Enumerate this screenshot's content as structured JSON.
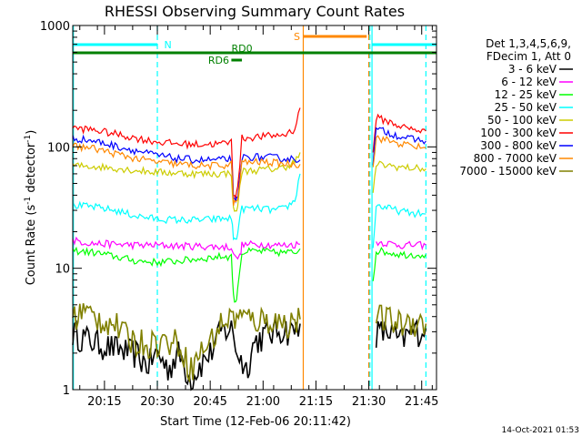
{
  "chart_data": {
    "type": "line",
    "title": "RHESSI Observing Summary Count Rates",
    "xlabel": "Start Time (12-Feb-06 20:11:42)",
    "ylabel": "Count Rate (s⁻¹ detector⁻¹)",
    "ylabel_main": "Count Rate (s",
    "ylabel_sup1": "-1",
    "ylabel_mid": " detector",
    "ylabel_sup2": "-1",
    "ylabel_end": ")",
    "yscale": "log",
    "ylim": [
      1,
      1000
    ],
    "xlim": [
      20.1,
      21.82
    ],
    "x_unit": "hours (UT)",
    "x_ticks": [
      {
        "t": 20.25,
        "label": "20:15"
      },
      {
        "t": 20.5,
        "label": "20:30"
      },
      {
        "t": 20.75,
        "label": "20:45"
      },
      {
        "t": 21.0,
        "label": "21:00"
      },
      {
        "t": 21.25,
        "label": "21:15"
      },
      {
        "t": 21.5,
        "label": "21:30"
      },
      {
        "t": 21.75,
        "label": "21:45"
      }
    ],
    "y_ticks": [
      {
        "v": 1,
        "label": "1"
      },
      {
        "v": 10,
        "label": "10"
      },
      {
        "v": 100,
        "label": "100"
      },
      {
        "v": 1000,
        "label": "1000"
      }
    ],
    "legend_header": [
      "Det 1,3,4,5,6,9,",
      "FDecim 1, Att 0"
    ],
    "legend_placement": "right",
    "series": [
      {
        "name": "3 - 6 keV",
        "color": "#000000",
        "points": [
          [
            20.1,
            3.0
          ],
          [
            20.2,
            2.5
          ],
          [
            20.3,
            2.2
          ],
          [
            20.4,
            2.0
          ],
          [
            20.45,
            1.6
          ],
          [
            20.5,
            2.0
          ],
          [
            20.55,
            1.5
          ],
          [
            20.6,
            2.0
          ],
          [
            20.66,
            1.2
          ],
          [
            20.7,
            1.6
          ],
          [
            20.75,
            2.0
          ],
          [
            20.8,
            3.0
          ],
          [
            20.85,
            3.2
          ],
          [
            20.88,
            2.0
          ],
          [
            20.92,
            1.5
          ],
          [
            20.96,
            2.5
          ],
          [
            21.0,
            2.8
          ],
          [
            21.05,
            3.0
          ],
          [
            21.1,
            3.2
          ],
          [
            21.14,
            3.0
          ],
          [
            21.175,
            3.5
          ]
        ]
      },
      {
        "name": "3 - 6 keV",
        "color": "#000000",
        "points": [
          [
            21.535,
            3.0
          ],
          [
            21.6,
            3.0
          ],
          [
            21.65,
            2.5
          ],
          [
            21.7,
            3.0
          ],
          [
            21.77,
            3.2
          ]
        ]
      },
      {
        "name": "6 - 12 keV",
        "color": "#ff00ff",
        "points": [
          [
            20.1,
            17
          ],
          [
            20.2,
            16
          ],
          [
            20.3,
            15.8
          ],
          [
            20.4,
            15.5
          ],
          [
            20.5,
            15.5
          ],
          [
            20.6,
            15.3
          ],
          [
            20.7,
            15.2
          ],
          [
            20.8,
            15.0
          ],
          [
            20.85,
            15.0
          ],
          [
            20.87,
            12.0
          ],
          [
            20.89,
            12.5
          ],
          [
            20.9,
            15.5
          ],
          [
            20.95,
            15.8
          ],
          [
            21.0,
            15.8
          ],
          [
            21.05,
            15.5
          ],
          [
            21.1,
            15.5
          ],
          [
            21.175,
            15.8
          ]
        ]
      },
      {
        "name": "6 - 12 keV",
        "color": "#ff00ff",
        "points": [
          [
            21.535,
            16.5
          ],
          [
            21.6,
            16
          ],
          [
            21.65,
            15.5
          ],
          [
            21.7,
            15.5
          ],
          [
            21.77,
            15.5
          ]
        ]
      },
      {
        "name": "12 - 25 keV",
        "color": "#00ff00",
        "points": [
          [
            20.1,
            14
          ],
          [
            20.2,
            13.5
          ],
          [
            20.3,
            12.5
          ],
          [
            20.4,
            11.5
          ],
          [
            20.5,
            11.2
          ],
          [
            20.6,
            11.5
          ],
          [
            20.7,
            12.0
          ],
          [
            20.8,
            12.5
          ],
          [
            20.85,
            12.5
          ],
          [
            20.86,
            6.0
          ],
          [
            20.87,
            5.0
          ],
          [
            20.88,
            7.0
          ],
          [
            20.9,
            13.5
          ],
          [
            20.95,
            13.8
          ],
          [
            21.0,
            13.8
          ],
          [
            21.05,
            13.5
          ],
          [
            21.1,
            13.5
          ],
          [
            21.15,
            13.5
          ],
          [
            21.175,
            14.5
          ]
        ]
      },
      {
        "name": "12 - 25 keV",
        "color": "#00ff00",
        "points": [
          [
            21.52,
            8.0
          ],
          [
            21.535,
            14
          ],
          [
            21.6,
            13.5
          ],
          [
            21.65,
            13.0
          ],
          [
            21.7,
            13.0
          ],
          [
            21.77,
            13.0
          ]
        ]
      },
      {
        "name": "25 - 50 keV",
        "color": "#00ffff",
        "points": [
          [
            20.1,
            33
          ],
          [
            20.2,
            32
          ],
          [
            20.3,
            30
          ],
          [
            20.4,
            27
          ],
          [
            20.5,
            25.5
          ],
          [
            20.6,
            25
          ],
          [
            20.7,
            25
          ],
          [
            20.8,
            25.5
          ],
          [
            20.85,
            26
          ],
          [
            20.86,
            18
          ],
          [
            20.87,
            17
          ],
          [
            20.88,
            20
          ],
          [
            20.9,
            31
          ],
          [
            20.95,
            31
          ],
          [
            21.0,
            31
          ],
          [
            21.05,
            30
          ],
          [
            21.1,
            31
          ],
          [
            21.15,
            36
          ],
          [
            21.175,
            60
          ]
        ]
      },
      {
        "name": "25 - 50 keV",
        "color": "#00ffff",
        "points": [
          [
            21.52,
            15
          ],
          [
            21.535,
            33
          ],
          [
            21.6,
            31
          ],
          [
            21.65,
            29.5
          ],
          [
            21.7,
            28.5
          ],
          [
            21.77,
            28
          ]
        ]
      },
      {
        "name": "50 - 100 keV",
        "color": "#cccc00",
        "points": [
          [
            20.1,
            70
          ],
          [
            20.2,
            69
          ],
          [
            20.3,
            67
          ],
          [
            20.4,
            64
          ],
          [
            20.5,
            62
          ],
          [
            20.6,
            61
          ],
          [
            20.7,
            60
          ],
          [
            20.8,
            60
          ],
          [
            20.85,
            61
          ],
          [
            20.86,
            30
          ],
          [
            20.87,
            29
          ],
          [
            20.88,
            33
          ],
          [
            20.9,
            63
          ],
          [
            20.95,
            64
          ],
          [
            21.0,
            65
          ],
          [
            21.05,
            66
          ],
          [
            21.1,
            68
          ],
          [
            21.15,
            75
          ],
          [
            21.175,
            90
          ]
        ]
      },
      {
        "name": "50 - 100 keV",
        "color": "#cccc00",
        "points": [
          [
            21.52,
            40
          ],
          [
            21.535,
            72
          ],
          [
            21.6,
            70
          ],
          [
            21.65,
            68
          ],
          [
            21.7,
            67
          ],
          [
            21.77,
            66
          ]
        ]
      },
      {
        "name": "100 - 300 keV",
        "color": "#ff0000",
        "points": [
          [
            20.1,
            143
          ],
          [
            20.2,
            138
          ],
          [
            20.3,
            128
          ],
          [
            20.4,
            118
          ],
          [
            20.5,
            110
          ],
          [
            20.6,
            106
          ],
          [
            20.7,
            105
          ],
          [
            20.8,
            106
          ],
          [
            20.85,
            110
          ],
          [
            20.86,
            42
          ],
          [
            20.87,
            40
          ],
          [
            20.88,
            45
          ],
          [
            20.9,
            118
          ],
          [
            20.95,
            120
          ],
          [
            21.0,
            122
          ],
          [
            21.05,
            124
          ],
          [
            21.1,
            126
          ],
          [
            21.15,
            140
          ],
          [
            21.175,
            210
          ]
        ]
      },
      {
        "name": "100 - 300 keV",
        "color": "#ff0000",
        "points": [
          [
            21.52,
            90
          ],
          [
            21.535,
            175
          ],
          [
            21.6,
            160
          ],
          [
            21.65,
            148
          ],
          [
            21.7,
            140
          ],
          [
            21.77,
            135
          ]
        ]
      },
      {
        "name": "300 - 800 keV",
        "color": "#0000ff",
        "points": [
          [
            20.1,
            118
          ],
          [
            20.2,
            112
          ],
          [
            20.3,
            102
          ],
          [
            20.4,
            93
          ],
          [
            20.5,
            85
          ],
          [
            20.6,
            80
          ],
          [
            20.7,
            78
          ],
          [
            20.8,
            78
          ],
          [
            20.85,
            80
          ],
          [
            20.86,
            36
          ],
          [
            20.87,
            35
          ],
          [
            20.88,
            38
          ],
          [
            20.9,
            82
          ],
          [
            20.95,
            83
          ],
          [
            21.0,
            82
          ],
          [
            21.05,
            82
          ],
          [
            21.1,
            80
          ],
          [
            21.15,
            80
          ],
          [
            21.175,
            78
          ]
        ]
      },
      {
        "name": "300 - 800 keV",
        "color": "#0000ff",
        "points": [
          [
            21.52,
            75
          ],
          [
            21.535,
            140
          ],
          [
            21.6,
            130
          ],
          [
            21.65,
            122
          ],
          [
            21.7,
            116
          ],
          [
            21.77,
            112
          ]
        ]
      },
      {
        "name": "800 - 7000 keV",
        "color": "#ff8800",
        "points": [
          [
            20.1,
            102
          ],
          [
            20.2,
            97
          ],
          [
            20.3,
            88
          ],
          [
            20.4,
            80
          ],
          [
            20.5,
            75
          ],
          [
            20.6,
            72
          ],
          [
            20.7,
            70
          ],
          [
            20.8,
            70
          ],
          [
            20.85,
            72
          ],
          [
            20.86,
            35
          ],
          [
            20.87,
            34
          ],
          [
            20.88,
            37
          ],
          [
            20.9,
            74
          ],
          [
            20.95,
            75
          ],
          [
            21.0,
            75
          ],
          [
            21.05,
            74
          ],
          [
            21.1,
            73
          ],
          [
            21.15,
            72
          ],
          [
            21.175,
            72
          ]
        ]
      },
      {
        "name": "800 - 7000 keV",
        "color": "#ff8800",
        "points": [
          [
            21.52,
            70
          ],
          [
            21.535,
            120
          ],
          [
            21.6,
            112
          ],
          [
            21.65,
            106
          ],
          [
            21.7,
            102
          ],
          [
            21.77,
            98
          ]
        ]
      },
      {
        "name": "7000 - 15000 keV",
        "color": "#808000",
        "points": [
          [
            20.1,
            4.0
          ],
          [
            20.15,
            4.5
          ],
          [
            20.2,
            4.0
          ],
          [
            20.3,
            3.5
          ],
          [
            20.35,
            2.8
          ],
          [
            20.4,
            2.5
          ],
          [
            20.5,
            2.5
          ],
          [
            20.6,
            2.5
          ],
          [
            20.66,
            1.5
          ],
          [
            20.7,
            2.0
          ],
          [
            20.75,
            2.5
          ],
          [
            20.8,
            3.5
          ],
          [
            20.85,
            4.0
          ],
          [
            20.9,
            4.0
          ],
          [
            20.95,
            3.8
          ],
          [
            21.0,
            3.8
          ],
          [
            21.05,
            3.8
          ],
          [
            21.1,
            3.5
          ],
          [
            21.15,
            3.8
          ],
          [
            21.175,
            3.8
          ]
        ]
      },
      {
        "name": "7000 - 15000 keV",
        "color": "#808000",
        "points": [
          [
            21.535,
            4.0
          ],
          [
            21.6,
            3.8
          ],
          [
            21.65,
            3.5
          ],
          [
            21.7,
            3.8
          ],
          [
            21.77,
            3.5
          ]
        ]
      }
    ],
    "legend_entries": [
      {
        "name": "3 - 6 keV",
        "color": "#000000"
      },
      {
        "name": "6 - 12 keV",
        "color": "#ff00ff"
      },
      {
        "name": "12 - 25 keV",
        "color": "#00ff00"
      },
      {
        "name": "25 - 50 keV",
        "color": "#00ffff"
      },
      {
        "name": "50 - 100 keV",
        "color": "#cccc00"
      },
      {
        "name": "100 - 300 keV",
        "color": "#ff0000"
      },
      {
        "name": "300 - 800 keV",
        "color": "#0000ff"
      },
      {
        "name": "800 - 7000 keV",
        "color": "#ff8800"
      },
      {
        "name": "7000 - 15000 keV",
        "color": "#808000"
      }
    ],
    "vertical_markers": [
      {
        "t": 20.103,
        "color": "#00ffff",
        "style": "solid"
      },
      {
        "t": 20.5,
        "color": "#00ffff",
        "style": "dashed"
      },
      {
        "t": 21.515,
        "color": "#00ffff",
        "style": "solid"
      },
      {
        "t": 21.505,
        "color": "#00ffff",
        "style": "dashed"
      },
      {
        "t": 21.77,
        "color": "#00ffff",
        "style": "dashed"
      },
      {
        "t": 21.19,
        "color": "#ff8800",
        "style": "solid"
      },
      {
        "t": 21.5,
        "color": "#ff8800",
        "style": "dashed"
      }
    ],
    "flag_bars": [
      {
        "t0": 20.103,
        "t1": 20.5,
        "level": 1,
        "color": "#00ffff",
        "label": "N",
        "label_at": 20.55
      },
      {
        "t0": 21.515,
        "t1": 21.82,
        "level": 1,
        "color": "#00ffff",
        "label": "",
        "label_at": 0
      },
      {
        "t0": 21.19,
        "t1": 21.49,
        "level": 0,
        "color": "#ff8800",
        "label": "S",
        "label_at": 21.16
      },
      {
        "t0": 20.1,
        "t1": 21.82,
        "level": 2,
        "color": "#008000",
        "label": "RD0",
        "label_at": 20.9
      },
      {
        "t0": 20.85,
        "t1": 20.9,
        "level": 3,
        "color": "#008000",
        "label": "RD6",
        "label_at": 20.79
      }
    ],
    "timestamp": "14-Oct-2021 01:53"
  }
}
